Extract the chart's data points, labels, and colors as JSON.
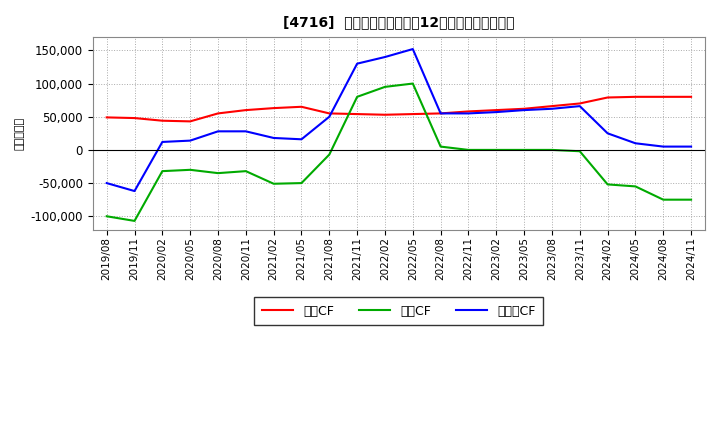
{
  "title": "[4716]  キャッシュフローの12か月移動合計の推移",
  "ylabel": "（百万円）",
  "x_labels": [
    "2019/08",
    "2019/11",
    "2020/02",
    "2020/05",
    "2020/08",
    "2020/11",
    "2021/02",
    "2021/05",
    "2021/08",
    "2021/11",
    "2022/02",
    "2022/05",
    "2022/08",
    "2022/11",
    "2023/02",
    "2023/05",
    "2023/08",
    "2023/11",
    "2024/02",
    "2024/05",
    "2024/08",
    "2024/11"
  ],
  "eigyo_cf": [
    49000,
    48000,
    44000,
    43000,
    55000,
    60000,
    63000,
    65000,
    55000,
    54000,
    53000,
    54000,
    55000,
    58000,
    60000,
    62000,
    66000,
    70000,
    79000,
    80000,
    80000,
    80000
  ],
  "toshi_cf": [
    -100000,
    -107000,
    -32000,
    -30000,
    -35000,
    -32000,
    -51000,
    -50000,
    -7000,
    80000,
    95000,
    100000,
    5000,
    0,
    0,
    0,
    0,
    -2000,
    -52000,
    -55000,
    -75000,
    -75000
  ],
  "free_cf": [
    -50000,
    -62000,
    12000,
    14000,
    28000,
    28000,
    18000,
    16000,
    50000,
    130000,
    140000,
    152000,
    55000,
    55000,
    57000,
    60000,
    62000,
    66000,
    25000,
    10000,
    5000,
    5000
  ],
  "eigyo_color": "#ff0000",
  "toshi_color": "#00aa00",
  "free_color": "#0000ff",
  "bg_color": "#ffffff",
  "plot_bg_color": "#ffffff",
  "grid_color": "#aaaaaa",
  "ylim": [
    -120000,
    170000
  ],
  "yticks": [
    -100000,
    -50000,
    0,
    50000,
    100000,
    150000
  ],
  "legend_labels": [
    "営業CF",
    "投資CF",
    "フリーCF"
  ]
}
